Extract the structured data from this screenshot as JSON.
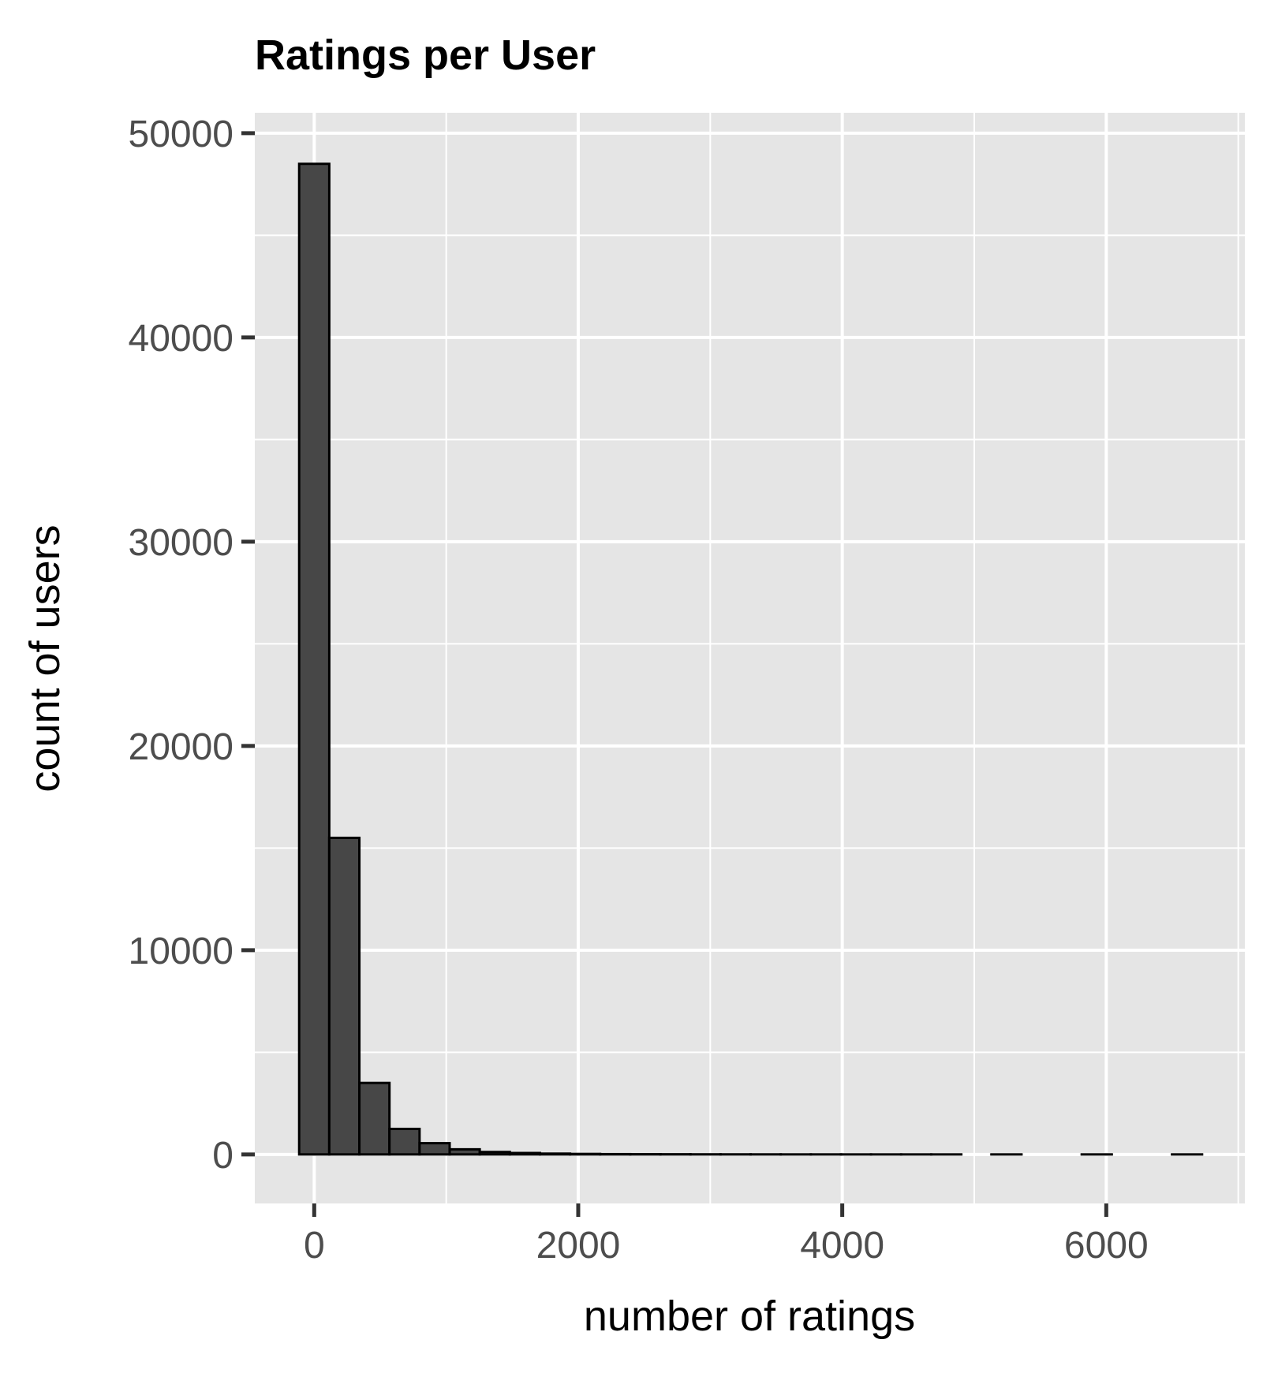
{
  "chart_data": {
    "type": "bar",
    "title": "Ratings per User",
    "xlabel": "number of ratings",
    "ylabel": "count of users",
    "xlim": [
      -450,
      7050
    ],
    "ylim": [
      -2400,
      51000
    ],
    "x_ticks": [
      0,
      2000,
      4000,
      6000
    ],
    "y_ticks": [
      0,
      10000,
      20000,
      30000,
      40000,
      50000
    ],
    "x_minor_ticks": [
      -1000,
      1000,
      3000,
      5000,
      7000
    ],
    "y_minor_ticks": [
      5000,
      15000,
      25000,
      35000,
      45000
    ],
    "grid": true,
    "bin_width": 228,
    "bins": [
      {
        "x": 0,
        "count": 48500
      },
      {
        "x": 228,
        "count": 15500
      },
      {
        "x": 456,
        "count": 3500
      },
      {
        "x": 684,
        "count": 1250
      },
      {
        "x": 912,
        "count": 550
      },
      {
        "x": 1140,
        "count": 250
      },
      {
        "x": 1368,
        "count": 120
      },
      {
        "x": 1596,
        "count": 70
      },
      {
        "x": 1824,
        "count": 40
      },
      {
        "x": 2052,
        "count": 25
      },
      {
        "x": 2280,
        "count": 15
      },
      {
        "x": 2508,
        "count": 10
      },
      {
        "x": 2736,
        "count": 8
      },
      {
        "x": 2964,
        "count": 5
      },
      {
        "x": 3192,
        "count": 4
      },
      {
        "x": 3420,
        "count": 3
      },
      {
        "x": 3648,
        "count": 2
      },
      {
        "x": 3876,
        "count": 2
      },
      {
        "x": 4104,
        "count": 1
      },
      {
        "x": 4332,
        "count": 1
      },
      {
        "x": 4560,
        "count": 1
      },
      {
        "x": 4788,
        "count": 1
      },
      {
        "x": 5016,
        "count": 0
      },
      {
        "x": 5244,
        "count": 1
      },
      {
        "x": 5472,
        "count": 0
      },
      {
        "x": 5700,
        "count": 0
      },
      {
        "x": 5928,
        "count": 1
      },
      {
        "x": 6156,
        "count": 0
      },
      {
        "x": 6384,
        "count": 0
      },
      {
        "x": 6612,
        "count": 1
      }
    ],
    "colors": {
      "bar_fill": "#474747",
      "bar_stroke": "#000000",
      "panel_bg": "#e5e5e5",
      "grid": "#ffffff",
      "tick": "#333333"
    }
  }
}
